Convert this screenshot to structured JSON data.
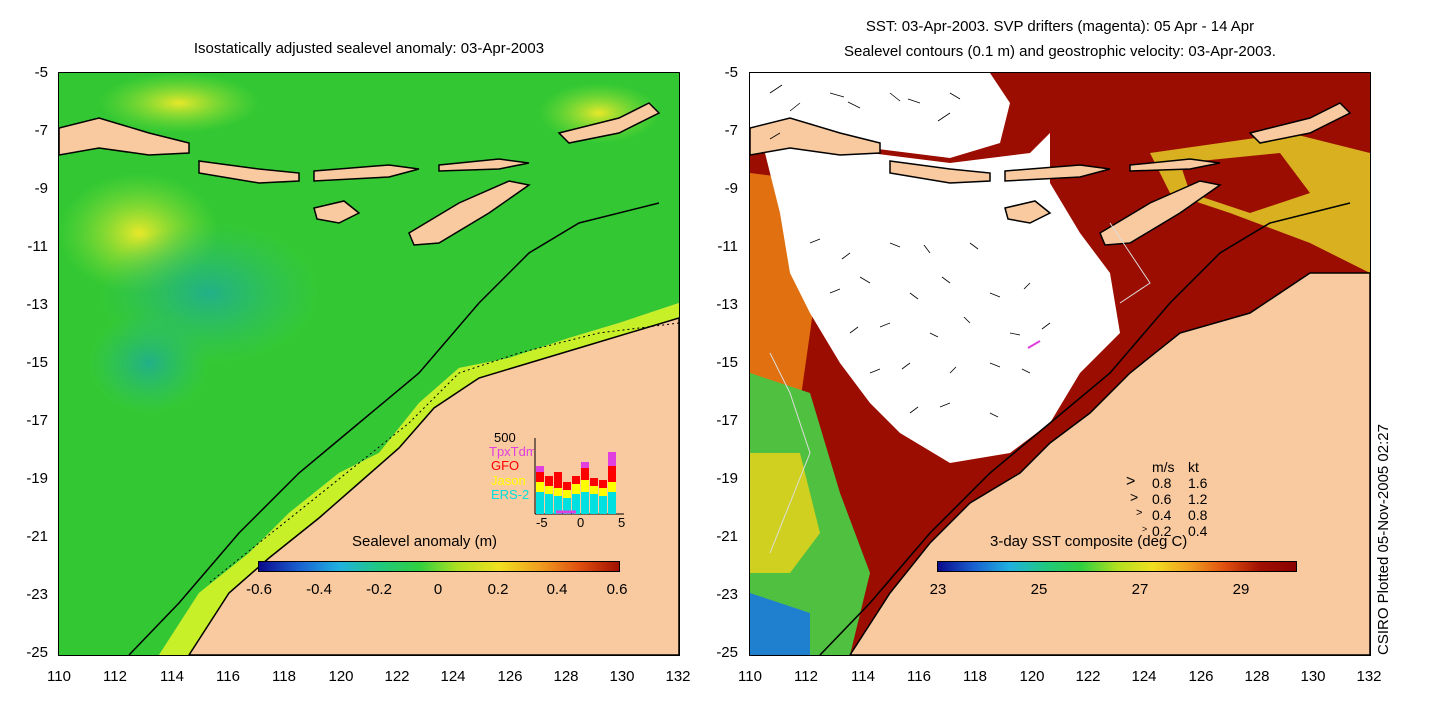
{
  "left_panel": {
    "title": "Isostatically adjusted sealevel anomaly: 03-Apr-2003",
    "y_ticks": [
      "-5",
      "-7",
      "-9",
      "-11",
      "-13",
      "-15",
      "-17",
      "-19",
      "-21",
      "-23",
      "-25"
    ],
    "x_ticks": [
      "110",
      "112",
      "114",
      "116",
      "118",
      "120",
      "122",
      "124",
      "126",
      "128",
      "130",
      "132"
    ],
    "colorbar": {
      "title": "Sealevel anomaly (m)",
      "labels": [
        "-0.6",
        "-0.4",
        "-0.2",
        "0",
        "0.2",
        "0.4",
        "0.6"
      ]
    },
    "data_inset": {
      "top_label": "500",
      "series": [
        {
          "name": "TpxTdm",
          "color": "#e040e0"
        },
        {
          "name": "GFO",
          "color": "#ff0000"
        },
        {
          "name": "Jason",
          "color": "#ffff00"
        },
        {
          "name": "ERS-2",
          "color": "#00e0e0"
        }
      ],
      "x_labels": [
        "-5",
        "0",
        "5"
      ]
    }
  },
  "right_panel": {
    "title_line1": "SST: 03-Apr-2003. SVP drifters (magenta): 05 Apr - 14 Apr",
    "title_line2": "Sealevel contours (0.1 m) and geostrophic velocity: 03-Apr-2003.",
    "y_ticks": [
      "-5",
      "-7",
      "-9",
      "-11",
      "-13",
      "-15",
      "-17",
      "-19",
      "-21",
      "-23",
      "-25"
    ],
    "x_ticks": [
      "110",
      "112",
      "114",
      "116",
      "118",
      "120",
      "122",
      "124",
      "126",
      "128",
      "130",
      "132"
    ],
    "velocity_legend": {
      "header_ms": "m/s",
      "header_kt": "kt",
      "rows": [
        {
          "ms": "0.8",
          "kt": "1.6"
        },
        {
          "ms": "0.6",
          "kt": "1.2"
        },
        {
          "ms": "0.4",
          "kt": "0.8"
        },
        {
          "ms": "0.2",
          "kt": "0.4"
        }
      ]
    },
    "colorbar": {
      "title": "3-day SST composite (deg C)",
      "labels": [
        "23",
        "25",
        "27",
        "29"
      ]
    }
  },
  "credit": "CSIRO Plotted 05-Nov-2005 02:27",
  "colors": {
    "land": "#f9c99f",
    "ocean_anomaly": "#33c833",
    "sst_warm": "#9b0d00"
  }
}
